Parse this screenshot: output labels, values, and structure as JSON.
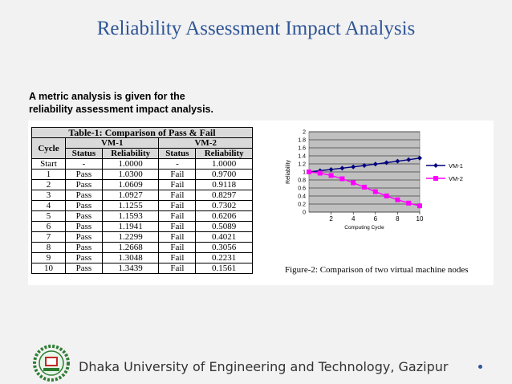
{
  "slide": {
    "title": "Reliability Assessment Impact Analysis",
    "intro_line1": "A metric analysis is given for the",
    "intro_line2": "reliability assessment impact analysis.",
    "footer": "Dhaka University of Engineering and Technology, Gazipur"
  },
  "table": {
    "caption": "Table-1: Comparison of Pass & Fail",
    "col_cycle": "Cycle",
    "group1": "VM-1",
    "group2": "VM-2",
    "sub_status": "Status",
    "sub_reliability": "Reliability",
    "rows": [
      [
        "Start",
        "-",
        "1.0000",
        "-",
        "1.0000"
      ],
      [
        "1",
        "Pass",
        "1.0300",
        "Fail",
        "0.9700"
      ],
      [
        "2",
        "Pass",
        "1.0609",
        "Fail",
        "0.9118"
      ],
      [
        "3",
        "Pass",
        "1.0927",
        "Fail",
        "0.8297"
      ],
      [
        "4",
        "Pass",
        "1.1255",
        "Fail",
        "0.7302"
      ],
      [
        "5",
        "Pass",
        "1.1593",
        "Fail",
        "0.6206"
      ],
      [
        "6",
        "Pass",
        "1.1941",
        "Fail",
        "0.5089"
      ],
      [
        "7",
        "Pass",
        "1.2299",
        "Fail",
        "0.4021"
      ],
      [
        "8",
        "Pass",
        "1.2668",
        "Fail",
        "0.3056"
      ],
      [
        "9",
        "Pass",
        "1.3048",
        "Fail",
        "0.2231"
      ],
      [
        "10",
        "Pass",
        "1.3439",
        "Fail",
        "0.1561"
      ]
    ]
  },
  "chart_data": {
    "type": "line",
    "xlabel": "Computing Cycle",
    "ylabel": "Reliability",
    "x": [
      0,
      1,
      2,
      3,
      4,
      5,
      6,
      7,
      8,
      9,
      10
    ],
    "xticks": [
      2,
      4,
      6,
      8,
      10
    ],
    "yticks": [
      0,
      0.2,
      0.4,
      0.6,
      0.8,
      1,
      1.2,
      1.4,
      1.6,
      1.8,
      2
    ],
    "xlim": [
      0,
      10
    ],
    "ylim": [
      0,
      2
    ],
    "grid": true,
    "legend": "right",
    "series": [
      {
        "name": "VM-1",
        "color": "#000080",
        "marker": "diamond",
        "values": [
          1.0,
          1.03,
          1.0609,
          1.0927,
          1.1255,
          1.1593,
          1.1941,
          1.2299,
          1.2668,
          1.3048,
          1.3439
        ]
      },
      {
        "name": "VM-2",
        "color": "#ff00ff",
        "marker": "square",
        "values": [
          1.0,
          0.97,
          0.9118,
          0.8297,
          0.7302,
          0.6206,
          0.5089,
          0.4021,
          0.3056,
          0.2231,
          0.1561
        ]
      }
    ],
    "figure_caption": "Figure-2: Comparison of two virtual machine nodes"
  },
  "colors": {
    "title": "#2f5597",
    "plot_bg": "#c0c0c0"
  }
}
